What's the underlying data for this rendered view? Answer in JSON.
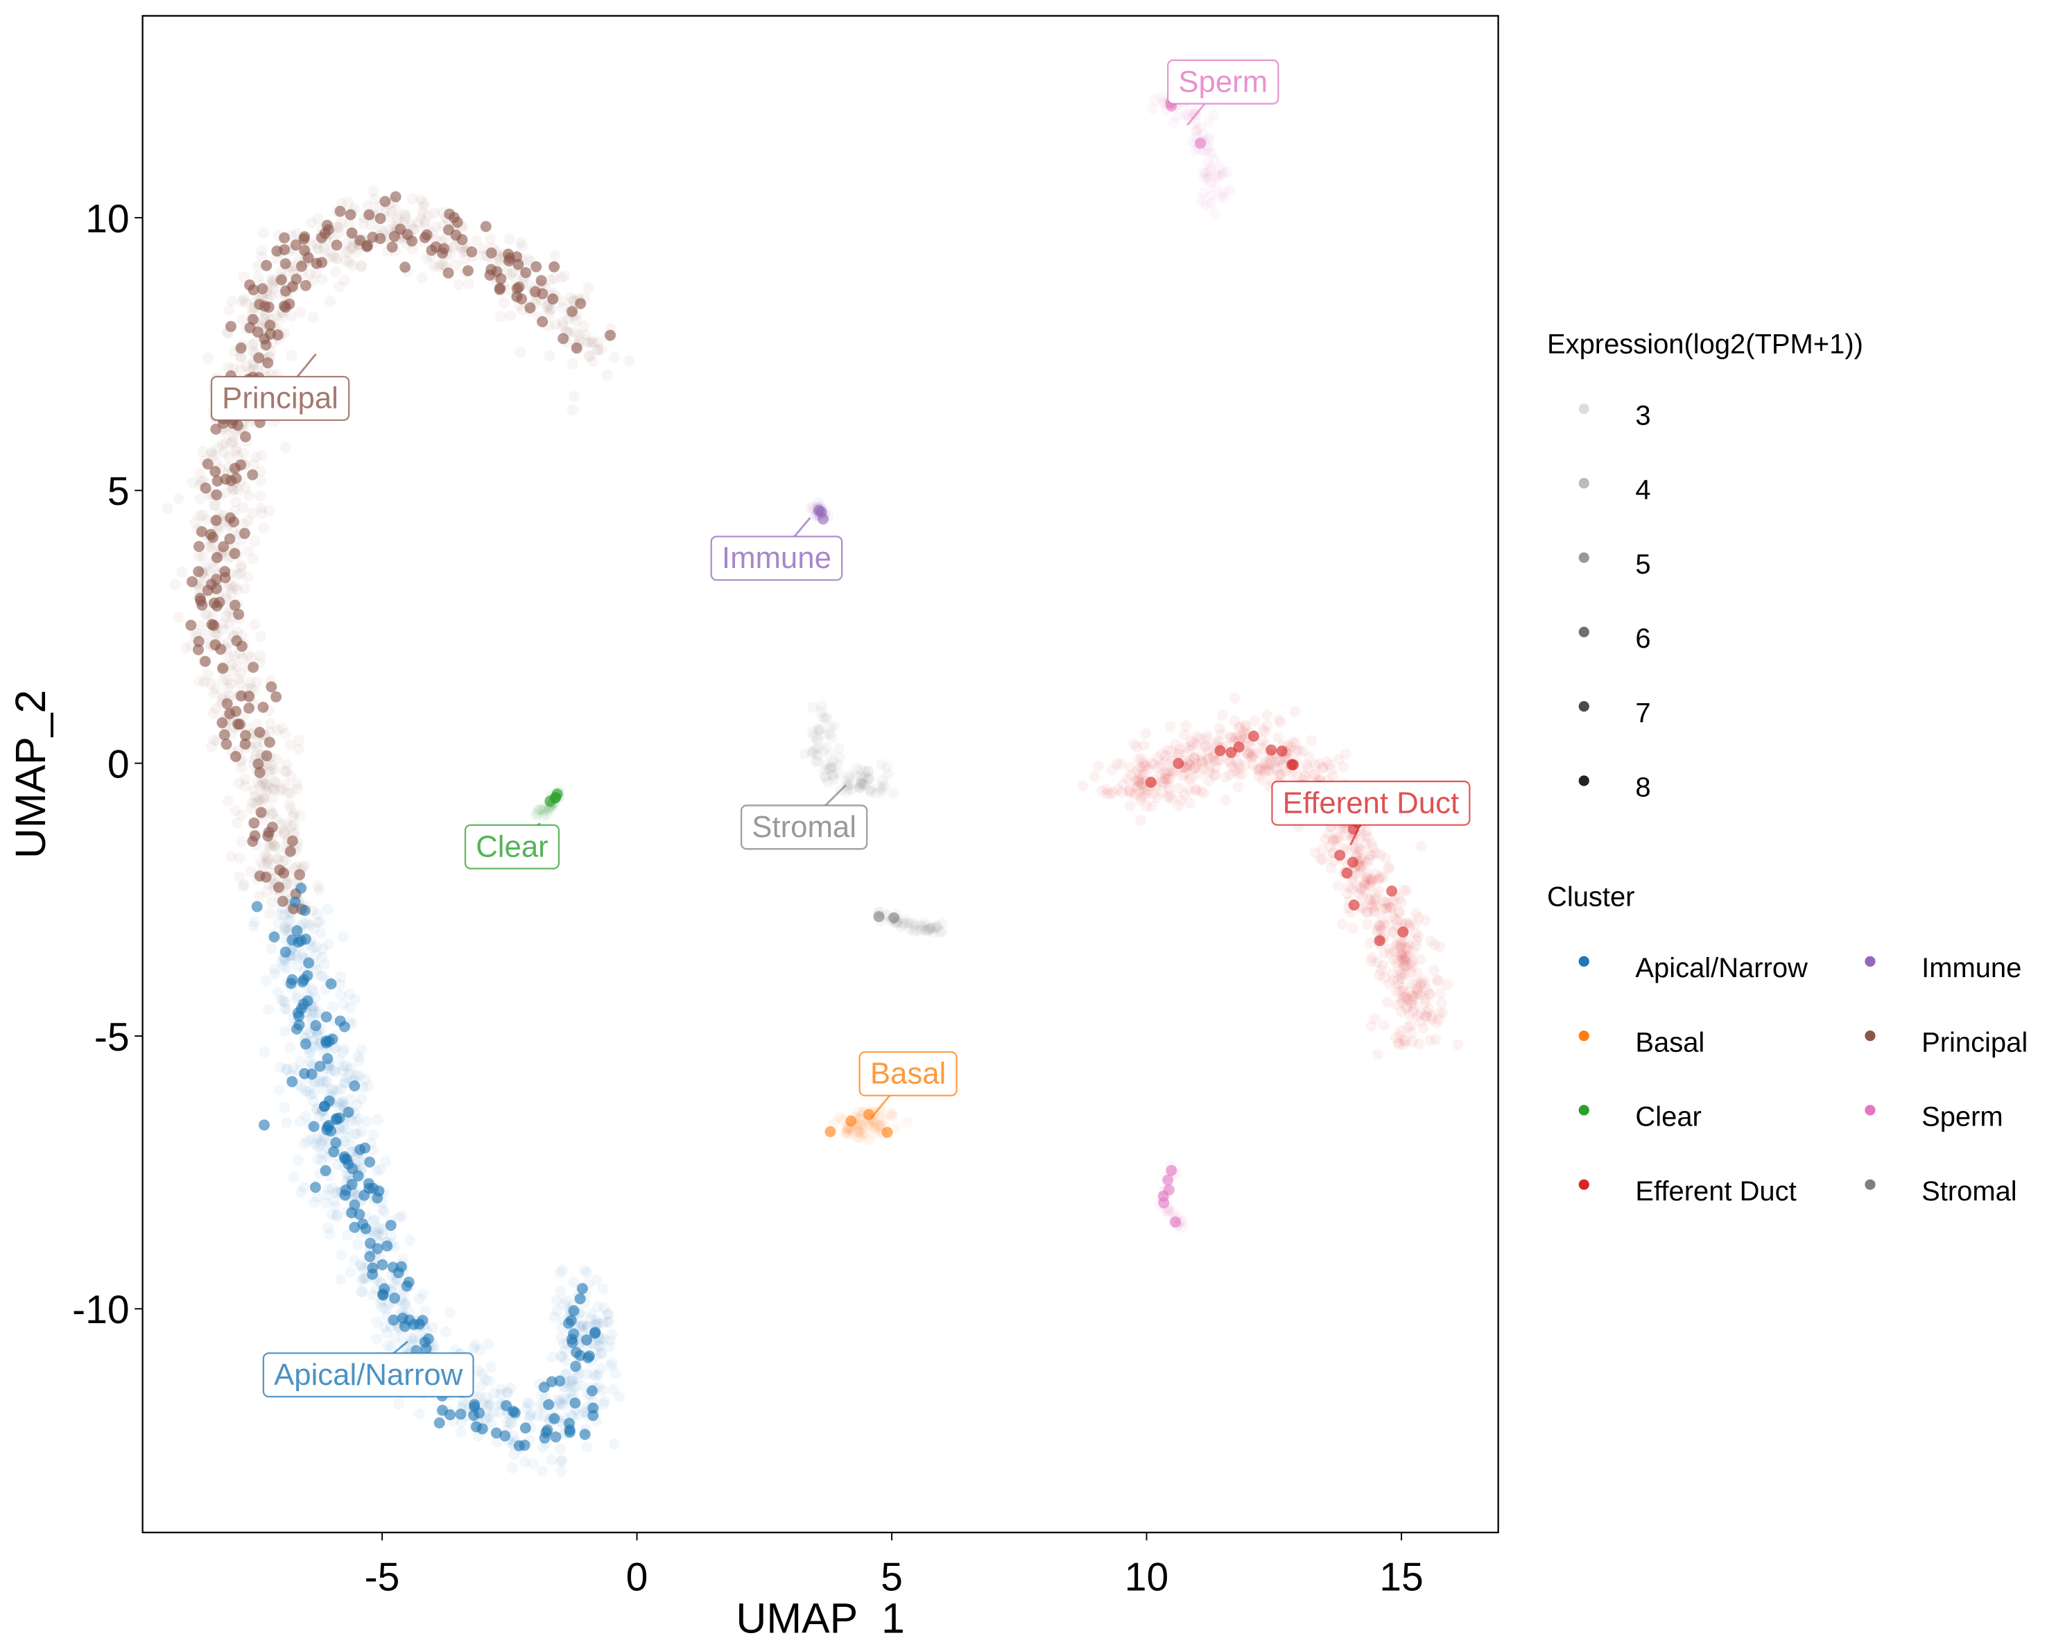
{
  "chart_data": {
    "type": "scatter",
    "xlabel": "UMAP_1",
    "ylabel": "UMAP_2",
    "xlim": [
      -9.7,
      16.9
    ],
    "ylim": [
      -14.1,
      13.7
    ],
    "x_ticks": [
      -5,
      0,
      5,
      10,
      15
    ],
    "y_ticks": [
      -10,
      -5,
      0,
      5,
      10
    ],
    "grid": false,
    "legend_placement": "right",
    "size_legend": {
      "title": "Expression(log2(TPM+1))",
      "levels": [
        {
          "label": "3",
          "color": "#dddddd"
        },
        {
          "label": "4",
          "color": "#bbbbbb"
        },
        {
          "label": "5",
          "color": "#999999"
        },
        {
          "label": "6",
          "color": "#707070"
        },
        {
          "label": "7",
          "color": "#4a4a4a"
        },
        {
          "label": "8",
          "color": "#222222"
        }
      ]
    },
    "cluster_legend": {
      "title": "Cluster",
      "entries": [
        {
          "label": "Apical/Narrow",
          "color": "#1f77b4"
        },
        {
          "label": "Basal",
          "color": "#ff7f0e"
        },
        {
          "label": "Clear",
          "color": "#2ca02c"
        },
        {
          "label": "Efferent Duct",
          "color": "#d62728"
        },
        {
          "label": "Immune",
          "color": "#9467bd"
        },
        {
          "label": "Principal",
          "color": "#8c564b"
        },
        {
          "label": "Sperm",
          "color": "#e377c2"
        },
        {
          "label": "Stromal",
          "color": "#7f7f7f"
        }
      ]
    },
    "clusters": [
      {
        "name": "Principal",
        "color": "#8c564b",
        "label_at": [
          -7.0,
          6.7
        ],
        "label_anchor": [
          -6.3,
          7.5
        ],
        "path": [
          [
            -0.8,
            7.5
          ],
          [
            -1.8,
            8.6
          ],
          [
            -3,
            9.4
          ],
          [
            -5,
            9.8
          ],
          [
            -6.8,
            9.3
          ],
          [
            -7.6,
            7.5
          ],
          [
            -8,
            5
          ],
          [
            -8.3,
            3
          ],
          [
            -7.8,
            1.2
          ],
          [
            -7.3,
            -0.5
          ],
          [
            -7,
            -2
          ],
          [
            -6.8,
            -2.6
          ]
        ],
        "spread": 0.55,
        "count": 900,
        "high": 220
      },
      {
        "name": "Apical/Narrow",
        "color": "#1f77b4",
        "label_at": [
          -5.27,
          -11.2
        ],
        "label_anchor": [
          -4.5,
          -10.6
        ],
        "path": [
          [
            -6.8,
            -2.7
          ],
          [
            -6.4,
            -4.5
          ],
          [
            -6,
            -6.5
          ],
          [
            -5.3,
            -8.5
          ],
          [
            -4.6,
            -10.3
          ],
          [
            -3.5,
            -11.6
          ],
          [
            -2.2,
            -12.2
          ],
          [
            -1.3,
            -12
          ],
          [
            -1,
            -10.8
          ],
          [
            -1.1,
            -9.6
          ]
        ],
        "spread": 0.6,
        "count": 800,
        "high": 170
      },
      {
        "name": "Clear",
        "color": "#2ca02c",
        "label_at": [
          -2.45,
          -1.52
        ],
        "label_anchor": [
          -1.9,
          -1.1
        ],
        "path": [
          [
            -1.9,
            -1.0
          ],
          [
            -1.5,
            -0.5
          ]
        ],
        "spread": 0.08,
        "count": 30,
        "high": 4
      },
      {
        "name": "Immune",
        "color": "#9467bd",
        "label_at": [
          2.74,
          3.77
        ],
        "label_anchor": [
          3.4,
          4.5
        ],
        "path": [
          [
            3.5,
            4.7
          ],
          [
            3.7,
            4.5
          ]
        ],
        "spread": 0.08,
        "count": 25,
        "high": 3
      },
      {
        "name": "Stromal",
        "color": "#7f7f7f",
        "label_at": [
          3.28,
          -1.16
        ],
        "label_anchor": [
          4.1,
          -0.4
        ],
        "path": [
          [
            3.6,
            0.8
          ],
          [
            3.7,
            0
          ],
          [
            4.2,
            -0.4
          ],
          [
            4.8,
            -0.3
          ]
        ],
        "spread": 0.25,
        "count": 90,
        "high": 0
      },
      {
        "name": "Stromal",
        "color": "#7f7f7f",
        "label_at": null,
        "label_anchor": null,
        "path": [
          [
            4.7,
            -2.8
          ],
          [
            5.5,
            -3.0
          ],
          [
            6.1,
            -3.1
          ]
        ],
        "spread": 0.1,
        "count": 45,
        "high": 2
      },
      {
        "name": "Basal",
        "color": "#ff7f0e",
        "label_at": [
          5.32,
          -5.68
        ],
        "label_anchor": [
          4.6,
          -6.5
        ],
        "path": [
          [
            4.0,
            -6.7
          ],
          [
            4.9,
            -6.5
          ]
        ],
        "spread": 0.22,
        "count": 70,
        "high": 4
      },
      {
        "name": "Efferent Duct",
        "color": "#d62728",
        "label_at": [
          14.4,
          -0.72
        ],
        "label_anchor": [
          14.0,
          -1.5
        ],
        "path": [
          [
            9.5,
            -0.5
          ],
          [
            10.8,
            0
          ],
          [
            12.2,
            0.3
          ],
          [
            13.3,
            -0.4
          ],
          [
            14.2,
            -1.8
          ],
          [
            14.9,
            -3.2
          ],
          [
            15.3,
            -4.5
          ],
          [
            15.2,
            -5
          ]
        ],
        "spread": 0.5,
        "count": 700,
        "high": 22
      },
      {
        "name": "Sperm",
        "color": "#e377c2",
        "label_at": [
          11.5,
          12.5
        ],
        "label_anchor": [
          10.8,
          11.7
        ],
        "path": [
          [
            10.2,
            12.2
          ],
          [
            10.9,
            11.9
          ],
          [
            11.2,
            11
          ],
          [
            11.4,
            10.3
          ]
        ],
        "spread": 0.22,
        "count": 70,
        "high": 3
      },
      {
        "name": "Sperm",
        "color": "#e377c2",
        "label_at": null,
        "label_anchor": null,
        "path": [
          [
            10.5,
            -7.4
          ],
          [
            10.3,
            -8.1
          ],
          [
            10.7,
            -8.5
          ]
        ],
        "spread": 0.08,
        "count": 25,
        "high": 6
      }
    ]
  }
}
